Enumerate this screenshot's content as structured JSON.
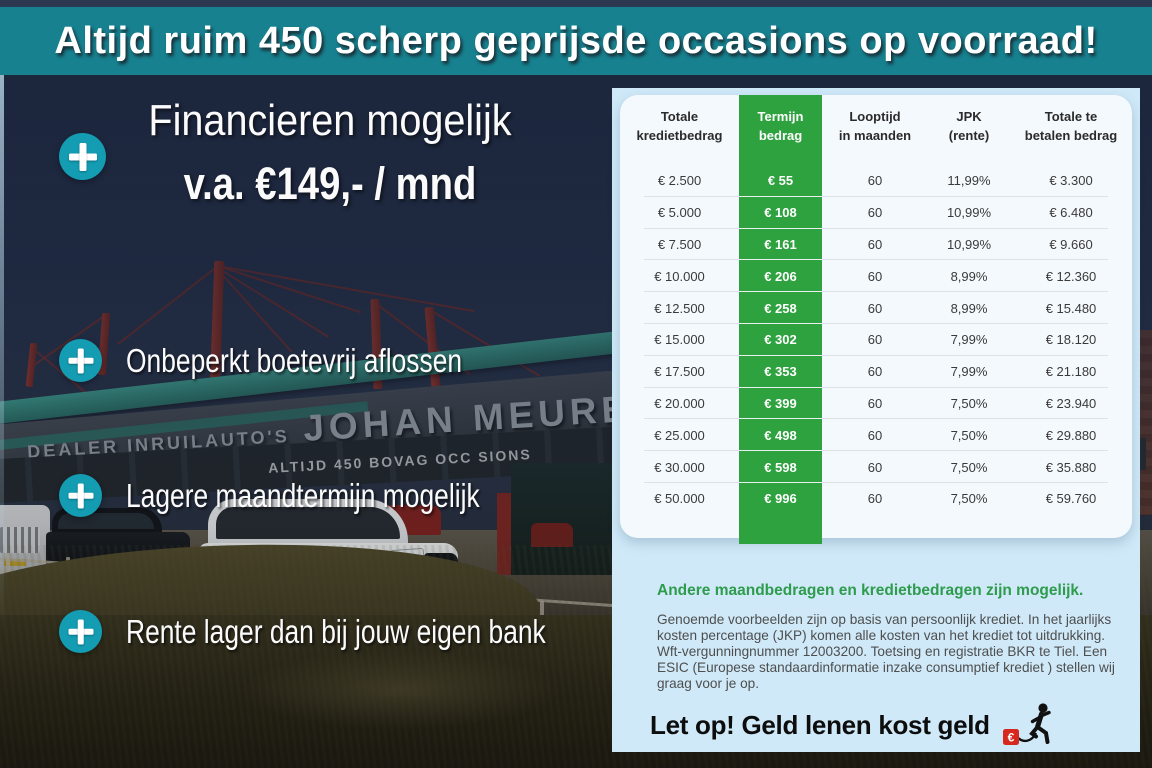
{
  "banner": {
    "text": "Altijd ruim 450 scherp geprijsde occasions op voorraad!"
  },
  "promo": {
    "headline": "Financieren mogelijk",
    "price_line": "v.a. €149,- / mnd",
    "bullets": [
      "Onbeperkt boetevrij aflossen",
      "Lagere maandtermijn mogelijk",
      "Rente lager dan bij jouw eigen bank"
    ]
  },
  "photo_signage": {
    "dealer_sign_small": "DEALER INRUILAUTO'S",
    "dealer_sign_large": "JOHAN MEURE",
    "window_sign": "ALTIJD 450 BOVAG OCC SIONS"
  },
  "finance_panel": {
    "table": {
      "headers": [
        {
          "line1": "Totale",
          "line2": "kredietbedrag"
        },
        {
          "line1": "Termijn",
          "line2": "bedrag"
        },
        {
          "line1": "Looptijd",
          "line2": "in maanden"
        },
        {
          "line1": "JPK",
          "line2": "(rente)"
        },
        {
          "line1": "Totale te",
          "line2": "betalen bedrag"
        }
      ],
      "rows": [
        [
          "€ 2.500",
          "€ 55",
          "60",
          "11,99%",
          "€ 3.300"
        ],
        [
          "€ 5.000",
          "€ 108",
          "60",
          "10,99%",
          "€ 6.480"
        ],
        [
          "€ 7.500",
          "€ 161",
          "60",
          "10,99%",
          "€ 9.660"
        ],
        [
          "€ 10.000",
          "€ 206",
          "60",
          "8,99%",
          "€ 12.360"
        ],
        [
          "€ 12.500",
          "€ 258",
          "60",
          "8,99%",
          "€ 15.480"
        ],
        [
          "€ 15.000",
          "€ 302",
          "60",
          "7,99%",
          "€ 18.120"
        ],
        [
          "€ 17.500",
          "€ 353",
          "60",
          "7,99%",
          "€ 21.180"
        ],
        [
          "€ 20.000",
          "€ 399",
          "60",
          "7,50%",
          "€ 23.940"
        ],
        [
          "€ 25.000",
          "€ 498",
          "60",
          "7,50%",
          "€ 29.880"
        ],
        [
          "€ 30.000",
          "€ 598",
          "60",
          "7,50%",
          "€ 35.880"
        ],
        [
          "€ 50.000",
          "€ 996",
          "60",
          "7,50%",
          "€ 59.760"
        ]
      ]
    },
    "subheading": "Andere maandbedragen en kredietbedragen zijn mogelijk.",
    "disclaimer": "Genoemde voorbeelden zijn op basis van persoonlijk krediet. In het jaarlijks kosten percentage (JKP) komen alle kosten van het krediet tot uitdrukking. Wft-vergunningnummer 12003200. Toetsing en registratie BKR te Tiel. Een ESIC (Europese standaardinformatie inzake consumptief krediet ) stellen wij graag voor je op.",
    "warning_text": "Let op! Geld lenen kost geld",
    "warning_icon_euro": "€"
  },
  "colors": {
    "banner_teal": "#17818F",
    "accent_teal": "#149CB2",
    "table_green": "#2EA23F",
    "panel_blue": "#CFE9F8",
    "heading_green": "#2E9B4D"
  }
}
